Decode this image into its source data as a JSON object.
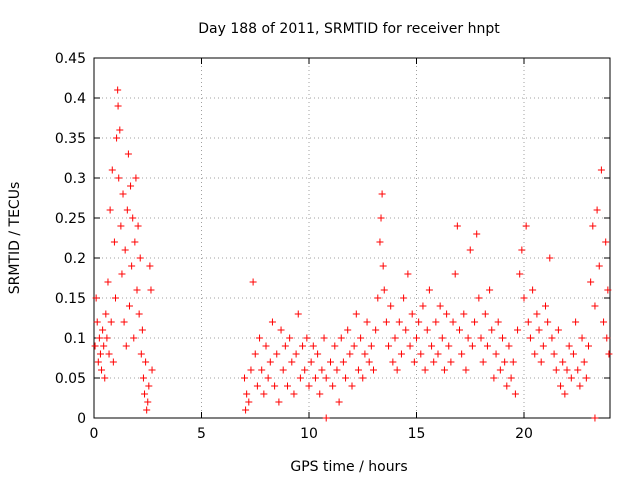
{
  "chart_data": {
    "type": "scatter",
    "title": "Day 188 of 2011, SRMTID for receiver hnpt",
    "xlabel": "GPS time / hours",
    "ylabel": "SRMTID / TECUs",
    "xlim": [
      0,
      24
    ],
    "ylim": [
      0,
      0.45
    ],
    "x_ticks": [
      0,
      5,
      10,
      15,
      20
    ],
    "x_tick_labels": [
      "0",
      "5",
      "10",
      "15",
      "20"
    ],
    "y_ticks": [
      0,
      0.05,
      0.1,
      0.15,
      0.2,
      0.25,
      0.3,
      0.35,
      0.4,
      0.45
    ],
    "y_tick_labels": [
      "0",
      "0.05",
      "0.1",
      "0.15",
      "0.2",
      "0.25",
      "0.3",
      "0.35",
      "0.4",
      "0.45"
    ],
    "grid": true,
    "marker": "+",
    "color": "#ff0000",
    "series": [
      {
        "name": "SRMTID",
        "points": [
          [
            0.05,
            0.09
          ],
          [
            0.1,
            0.15
          ],
          [
            0.15,
            0.12
          ],
          [
            0.2,
            0.07
          ],
          [
            0.25,
            0.1
          ],
          [
            0.3,
            0.08
          ],
          [
            0.35,
            0.06
          ],
          [
            0.4,
            0.11
          ],
          [
            0.45,
            0.09
          ],
          [
            0.5,
            0.05
          ],
          [
            0.55,
            0.13
          ],
          [
            0.6,
            0.1
          ],
          [
            0.65,
            0.17
          ],
          [
            0.7,
            0.08
          ],
          [
            0.75,
            0.26
          ],
          [
            0.8,
            0.12
          ],
          [
            0.85,
            0.31
          ],
          [
            0.9,
            0.07
          ],
          [
            0.95,
            0.22
          ],
          [
            1.0,
            0.15
          ],
          [
            1.05,
            0.35
          ],
          [
            1.1,
            0.41
          ],
          [
            1.12,
            0.39
          ],
          [
            1.15,
            0.3
          ],
          [
            1.2,
            0.36
          ],
          [
            1.25,
            0.24
          ],
          [
            1.3,
            0.18
          ],
          [
            1.35,
            0.28
          ],
          [
            1.4,
            0.12
          ],
          [
            1.45,
            0.21
          ],
          [
            1.5,
            0.09
          ],
          [
            1.55,
            0.26
          ],
          [
            1.6,
            0.33
          ],
          [
            1.65,
            0.14
          ],
          [
            1.7,
            0.29
          ],
          [
            1.75,
            0.19
          ],
          [
            1.8,
            0.25
          ],
          [
            1.85,
            0.1
          ],
          [
            1.9,
            0.22
          ],
          [
            1.95,
            0.3
          ],
          [
            2.0,
            0.16
          ],
          [
            2.05,
            0.24
          ],
          [
            2.1,
            0.13
          ],
          [
            2.15,
            0.2
          ],
          [
            2.2,
            0.08
          ],
          [
            2.25,
            0.11
          ],
          [
            2.3,
            0.05
          ],
          [
            2.35,
            0.03
          ],
          [
            2.4,
            0.07
          ],
          [
            2.45,
            0.01
          ],
          [
            2.5,
            0.02
          ],
          [
            2.55,
            0.04
          ],
          [
            2.6,
            0.19
          ],
          [
            2.65,
            0.16
          ],
          [
            2.7,
            0.06
          ],
          [
            7.0,
            0.05
          ],
          [
            7.05,
            0.01
          ],
          [
            7.1,
            0.03
          ],
          [
            7.2,
            0.02
          ],
          [
            7.3,
            0.06
          ],
          [
            7.4,
            0.17
          ],
          [
            7.5,
            0.08
          ],
          [
            7.6,
            0.04
          ],
          [
            7.7,
            0.1
          ],
          [
            7.8,
            0.06
          ],
          [
            7.9,
            0.03
          ],
          [
            8.0,
            0.09
          ],
          [
            8.1,
            0.05
          ],
          [
            8.2,
            0.07
          ],
          [
            8.3,
            0.12
          ],
          [
            8.4,
            0.04
          ],
          [
            8.5,
            0.08
          ],
          [
            8.6,
            0.02
          ],
          [
            8.7,
            0.11
          ],
          [
            8.8,
            0.06
          ],
          [
            8.9,
            0.09
          ],
          [
            9.0,
            0.04
          ],
          [
            9.1,
            0.1
          ],
          [
            9.2,
            0.07
          ],
          [
            9.3,
            0.03
          ],
          [
            9.4,
            0.08
          ],
          [
            9.5,
            0.13
          ],
          [
            9.6,
            0.05
          ],
          [
            9.7,
            0.09
          ],
          [
            9.8,
            0.06
          ],
          [
            9.9,
            0.1
          ],
          [
            10.0,
            0.04
          ],
          [
            10.1,
            0.07
          ],
          [
            10.2,
            0.09
          ],
          [
            10.3,
            0.05
          ],
          [
            10.4,
            0.08
          ],
          [
            10.5,
            0.03
          ],
          [
            10.6,
            0.06
          ],
          [
            10.7,
            0.1
          ],
          [
            10.8,
            0.05
          ],
          [
            11.0,
            0.07
          ],
          [
            11.1,
            0.04
          ],
          [
            11.2,
            0.09
          ],
          [
            11.3,
            0.06
          ],
          [
            11.4,
            0.02
          ],
          [
            11.5,
            0.1
          ],
          [
            11.6,
            0.07
          ],
          [
            11.7,
            0.05
          ],
          [
            11.8,
            0.11
          ],
          [
            11.9,
            0.08
          ],
          [
            12.0,
            0.04
          ],
          [
            12.1,
            0.09
          ],
          [
            12.2,
            0.13
          ],
          [
            12.3,
            0.06
          ],
          [
            12.4,
            0.1
          ],
          [
            12.5,
            0.05
          ],
          [
            12.6,
            0.08
          ],
          [
            12.7,
            0.12
          ],
          [
            12.8,
            0.07
          ],
          [
            12.9,
            0.09
          ],
          [
            13.0,
            0.06
          ],
          [
            13.1,
            0.11
          ],
          [
            13.2,
            0.15
          ],
          [
            13.3,
            0.22
          ],
          [
            13.35,
            0.25
          ],
          [
            13.4,
            0.28
          ],
          [
            13.45,
            0.19
          ],
          [
            13.5,
            0.16
          ],
          [
            13.6,
            0.12
          ],
          [
            13.7,
            0.09
          ],
          [
            13.8,
            0.14
          ],
          [
            13.9,
            0.07
          ],
          [
            14.0,
            0.1
          ],
          [
            14.1,
            0.06
          ],
          [
            14.2,
            0.12
          ],
          [
            14.3,
            0.08
          ],
          [
            14.4,
            0.15
          ],
          [
            14.5,
            0.11
          ],
          [
            14.6,
            0.18
          ],
          [
            14.7,
            0.09
          ],
          [
            14.8,
            0.13
          ],
          [
            14.9,
            0.07
          ],
          [
            15.0,
            0.1
          ],
          [
            15.1,
            0.12
          ],
          [
            15.2,
            0.08
          ],
          [
            15.3,
            0.14
          ],
          [
            15.4,
            0.06
          ],
          [
            15.5,
            0.11
          ],
          [
            15.6,
            0.16
          ],
          [
            15.7,
            0.09
          ],
          [
            15.8,
            0.07
          ],
          [
            15.9,
            0.12
          ],
          [
            16.0,
            0.08
          ],
          [
            16.1,
            0.14
          ],
          [
            16.2,
            0.1
          ],
          [
            16.3,
            0.06
          ],
          [
            16.4,
            0.13
          ],
          [
            16.5,
            0.09
          ],
          [
            16.6,
            0.07
          ],
          [
            16.7,
            0.12
          ],
          [
            16.8,
            0.18
          ],
          [
            16.9,
            0.24
          ],
          [
            17.0,
            0.11
          ],
          [
            17.1,
            0.08
          ],
          [
            17.2,
            0.13
          ],
          [
            17.3,
            0.06
          ],
          [
            17.4,
            0.1
          ],
          [
            17.5,
            0.21
          ],
          [
            17.6,
            0.09
          ],
          [
            17.7,
            0.12
          ],
          [
            17.8,
            0.23
          ],
          [
            17.9,
            0.15
          ],
          [
            18.0,
            0.1
          ],
          [
            18.1,
            0.07
          ],
          [
            18.2,
            0.13
          ],
          [
            18.3,
            0.09
          ],
          [
            18.4,
            0.16
          ],
          [
            18.5,
            0.11
          ],
          [
            18.6,
            0.05
          ],
          [
            18.7,
            0.08
          ],
          [
            18.8,
            0.12
          ],
          [
            18.9,
            0.06
          ],
          [
            19.0,
            0.1
          ],
          [
            19.1,
            0.07
          ],
          [
            19.2,
            0.04
          ],
          [
            19.3,
            0.09
          ],
          [
            19.4,
            0.05
          ],
          [
            19.5,
            0.07
          ],
          [
            19.6,
            0.03
          ],
          [
            19.7,
            0.11
          ],
          [
            19.8,
            0.18
          ],
          [
            19.9,
            0.21
          ],
          [
            20.0,
            0.15
          ],
          [
            20.1,
            0.24
          ],
          [
            20.2,
            0.12
          ],
          [
            20.3,
            0.1
          ],
          [
            20.4,
            0.16
          ],
          [
            20.5,
            0.08
          ],
          [
            20.6,
            0.13
          ],
          [
            20.7,
            0.11
          ],
          [
            20.8,
            0.07
          ],
          [
            20.9,
            0.09
          ],
          [
            21.0,
            0.14
          ],
          [
            21.1,
            0.12
          ],
          [
            21.2,
            0.2
          ],
          [
            21.3,
            0.1
          ],
          [
            21.4,
            0.08
          ],
          [
            21.5,
            0.06
          ],
          [
            21.6,
            0.11
          ],
          [
            21.7,
            0.04
          ],
          [
            21.8,
            0.07
          ],
          [
            21.9,
            0.03
          ],
          [
            22.0,
            0.06
          ],
          [
            22.1,
            0.09
          ],
          [
            22.2,
            0.05
          ],
          [
            22.3,
            0.08
          ],
          [
            22.4,
            0.12
          ],
          [
            22.5,
            0.06
          ],
          [
            22.6,
            0.04
          ],
          [
            22.7,
            0.1
          ],
          [
            22.8,
            0.07
          ],
          [
            22.9,
            0.05
          ],
          [
            23.0,
            0.09
          ],
          [
            23.1,
            0.17
          ],
          [
            23.2,
            0.24
          ],
          [
            23.3,
            0.14
          ],
          [
            23.4,
            0.26
          ],
          [
            23.5,
            0.19
          ],
          [
            23.6,
            0.31
          ],
          [
            23.7,
            0.12
          ],
          [
            23.8,
            0.22
          ],
          [
            23.85,
            0.1
          ],
          [
            23.9,
            0.16
          ],
          [
            23.95,
            0.08
          ],
          [
            10.8,
            0.0
          ],
          [
            23.3,
            0.0
          ]
        ]
      }
    ]
  }
}
